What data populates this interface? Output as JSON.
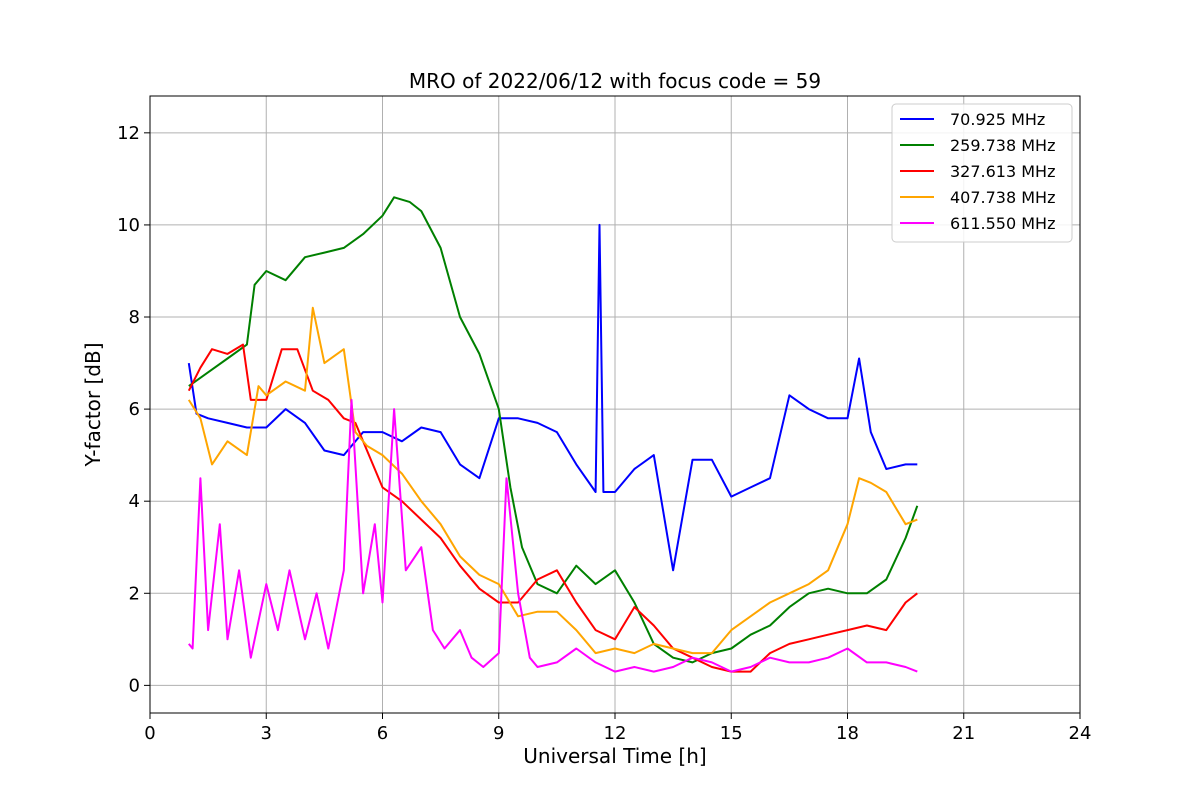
{
  "chart_data": {
    "type": "line",
    "title": "MRO of 2022/06/12 with focus code = 59",
    "xlabel": "Universal Time [h]",
    "ylabel": "Y-factor [dB]",
    "xlim": [
      0,
      24
    ],
    "ylim": [
      -0.6,
      12.8
    ],
    "xticks": [
      "0",
      "3",
      "6",
      "9",
      "12",
      "15",
      "18",
      "21",
      "24"
    ],
    "yticks": [
      "0",
      "2",
      "4",
      "6",
      "8",
      "10",
      "12"
    ],
    "grid": true,
    "legend_position": "upper right",
    "series": [
      {
        "name": "70.925 MHz",
        "color": "#0000ff",
        "x": [
          1.0,
          1.2,
          1.5,
          2.0,
          2.5,
          3.0,
          3.5,
          4.0,
          4.5,
          5.0,
          5.5,
          6.0,
          6.5,
          7.0,
          7.5,
          8.0,
          8.5,
          9.0,
          9.5,
          10.0,
          10.5,
          11.0,
          11.5,
          11.6,
          11.7,
          12.0,
          12.5,
          13.0,
          13.5,
          14.0,
          14.5,
          15.0,
          15.5,
          16.0,
          16.5,
          17.0,
          17.5,
          18.0,
          18.3,
          18.6,
          19.0,
          19.5,
          19.8
        ],
        "y": [
          7.0,
          5.9,
          5.8,
          5.7,
          5.6,
          5.6,
          6.0,
          5.7,
          5.1,
          5.0,
          5.5,
          5.5,
          5.3,
          5.6,
          5.5,
          4.8,
          4.5,
          5.8,
          5.8,
          5.7,
          5.5,
          4.8,
          4.2,
          10.0,
          4.2,
          4.2,
          4.7,
          5.0,
          2.5,
          4.9,
          4.9,
          4.1,
          4.3,
          4.5,
          6.3,
          6.0,
          5.8,
          5.8,
          7.1,
          5.5,
          4.7,
          4.8,
          4.8
        ]
      },
      {
        "name": "259.738 MHz",
        "color": "#008000",
        "x": [
          1.0,
          1.5,
          2.0,
          2.5,
          2.7,
          3.0,
          3.5,
          4.0,
          4.5,
          5.0,
          5.5,
          6.0,
          6.3,
          6.7,
          7.0,
          7.5,
          8.0,
          8.5,
          9.0,
          9.3,
          9.6,
          10.0,
          10.5,
          11.0,
          11.5,
          12.0,
          12.5,
          13.0,
          13.5,
          14.0,
          14.5,
          15.0,
          15.5,
          16.0,
          16.5,
          17.0,
          17.5,
          18.0,
          18.5,
          19.0,
          19.5,
          19.8
        ],
        "y": [
          6.5,
          6.8,
          7.1,
          7.4,
          8.7,
          9.0,
          8.8,
          9.3,
          9.4,
          9.5,
          9.8,
          10.2,
          10.6,
          10.5,
          10.3,
          9.5,
          8.0,
          7.2,
          6.0,
          4.3,
          3.0,
          2.2,
          2.0,
          2.6,
          2.2,
          2.5,
          1.8,
          0.9,
          0.6,
          0.5,
          0.7,
          0.8,
          1.1,
          1.3,
          1.7,
          2.0,
          2.1,
          2.0,
          2.0,
          2.3,
          3.2,
          3.9
        ]
      },
      {
        "name": "327.613 MHz",
        "color": "#ff0000",
        "x": [
          1.0,
          1.3,
          1.6,
          2.0,
          2.4,
          2.6,
          3.0,
          3.4,
          3.8,
          4.2,
          4.6,
          5.0,
          5.3,
          5.6,
          6.0,
          6.5,
          7.0,
          7.5,
          8.0,
          8.5,
          9.0,
          9.5,
          10.0,
          10.5,
          11.0,
          11.5,
          12.0,
          12.5,
          13.0,
          13.5,
          14.0,
          14.5,
          15.0,
          15.5,
          16.0,
          16.5,
          17.0,
          17.5,
          18.0,
          18.5,
          19.0,
          19.5,
          19.8
        ],
        "y": [
          6.4,
          6.9,
          7.3,
          7.2,
          7.4,
          6.2,
          6.2,
          7.3,
          7.3,
          6.4,
          6.2,
          5.8,
          5.7,
          5.1,
          4.3,
          4.0,
          3.6,
          3.2,
          2.6,
          2.1,
          1.8,
          1.8,
          2.3,
          2.5,
          1.8,
          1.2,
          1.0,
          1.7,
          1.3,
          0.8,
          0.6,
          0.4,
          0.3,
          0.3,
          0.7,
          0.9,
          1.0,
          1.1,
          1.2,
          1.3,
          1.2,
          1.8,
          2.0
        ]
      },
      {
        "name": "407.738 MHz",
        "color": "#ffa500",
        "x": [
          1.0,
          1.3,
          1.6,
          2.0,
          2.5,
          2.8,
          3.0,
          3.5,
          4.0,
          4.2,
          4.5,
          5.0,
          5.3,
          5.6,
          6.0,
          6.5,
          7.0,
          7.5,
          8.0,
          8.5,
          9.0,
          9.5,
          10.0,
          10.5,
          11.0,
          11.5,
          12.0,
          12.5,
          13.0,
          13.5,
          14.0,
          14.5,
          15.0,
          15.5,
          16.0,
          16.5,
          17.0,
          17.5,
          18.0,
          18.3,
          18.6,
          19.0,
          19.5,
          19.8
        ],
        "y": [
          6.2,
          5.8,
          4.8,
          5.3,
          5.0,
          6.5,
          6.3,
          6.6,
          6.4,
          8.2,
          7.0,
          7.3,
          5.5,
          5.2,
          5.0,
          4.6,
          4.0,
          3.5,
          2.8,
          2.4,
          2.2,
          1.5,
          1.6,
          1.6,
          1.2,
          0.7,
          0.8,
          0.7,
          0.9,
          0.8,
          0.7,
          0.7,
          1.2,
          1.5,
          1.8,
          2.0,
          2.2,
          2.5,
          3.5,
          4.5,
          4.4,
          4.2,
          3.5,
          3.6
        ]
      },
      {
        "name": "611.550 MHz",
        "color": "#ff00ff",
        "x": [
          1.0,
          1.1,
          1.3,
          1.5,
          1.8,
          2.0,
          2.3,
          2.6,
          3.0,
          3.3,
          3.6,
          4.0,
          4.3,
          4.6,
          5.0,
          5.2,
          5.5,
          5.8,
          6.0,
          6.3,
          6.6,
          7.0,
          7.3,
          7.6,
          8.0,
          8.3,
          8.6,
          9.0,
          9.2,
          9.5,
          9.8,
          10.0,
          10.5,
          11.0,
          11.5,
          12.0,
          12.5,
          13.0,
          13.5,
          14.0,
          14.5,
          15.0,
          15.5,
          16.0,
          16.5,
          17.0,
          17.5,
          18.0,
          18.5,
          19.0,
          19.5,
          19.8
        ],
        "y": [
          0.9,
          0.8,
          4.5,
          1.2,
          3.5,
          1.0,
          2.5,
          0.6,
          2.2,
          1.2,
          2.5,
          1.0,
          2.0,
          0.8,
          2.5,
          6.2,
          2.0,
          3.5,
          1.8,
          6.0,
          2.5,
          3.0,
          1.2,
          0.8,
          1.2,
          0.6,
          0.4,
          0.7,
          4.5,
          2.0,
          0.6,
          0.4,
          0.5,
          0.8,
          0.5,
          0.3,
          0.4,
          0.3,
          0.4,
          0.6,
          0.5,
          0.3,
          0.4,
          0.6,
          0.5,
          0.5,
          0.6,
          0.8,
          0.5,
          0.5,
          0.4,
          0.3
        ]
      }
    ]
  }
}
